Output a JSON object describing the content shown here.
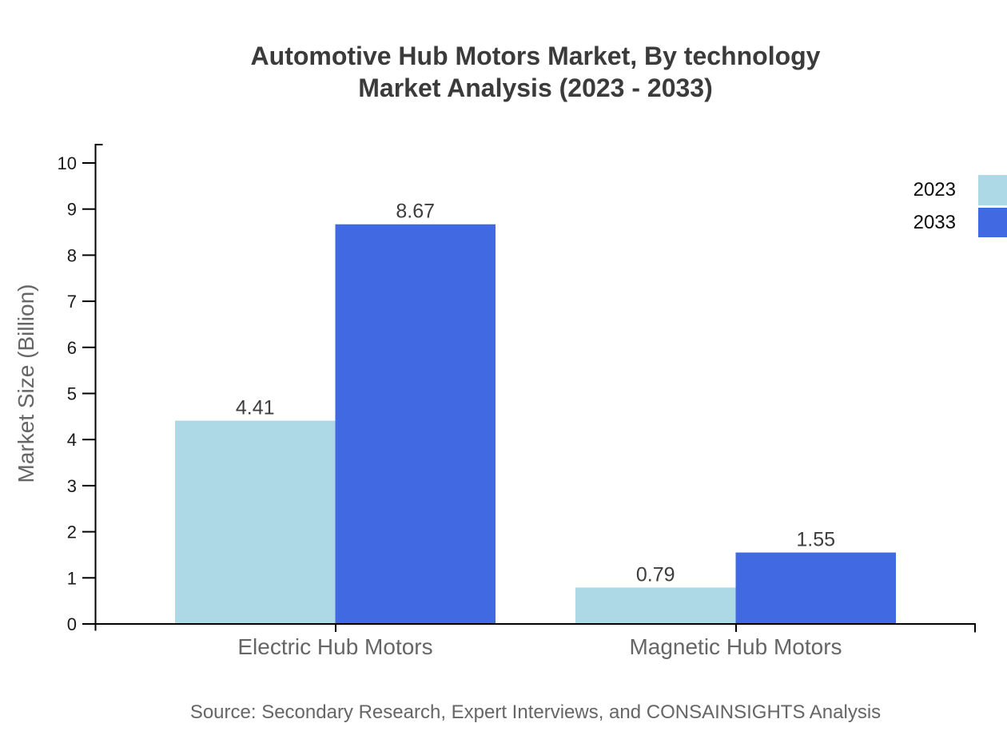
{
  "title": {
    "line1": "Automotive Hub Motors Market, By technology",
    "line2": "Market Analysis (2023 - 2033)"
  },
  "source_note": "Source: Secondary Research, Expert Interviews, and CONSAINSIGHTS Analysis",
  "chart_data": {
    "type": "bar",
    "title": "Automotive Hub Motors Market, By technology Market Analysis (2023 - 2033)",
    "categories": [
      "Electric Hub Motors",
      "Magnetic Hub Motors"
    ],
    "series": [
      {
        "name": "2023",
        "color": "#ADD8E6",
        "values": [
          4.41,
          0.79
        ]
      },
      {
        "name": "2033",
        "color": "#4169E1",
        "values": [
          8.67,
          1.55
        ]
      }
    ],
    "xlabel": "",
    "ylabel": "Market Size (Billion)",
    "ylim": [
      0,
      10
    ],
    "yticks": [
      0,
      1,
      2,
      3,
      4,
      5,
      6,
      7,
      8,
      9,
      10
    ],
    "grid": false,
    "legend_position": "top-right",
    "value_labels": true,
    "value_label_decimals": 2
  },
  "colors": {
    "axis": "#000000",
    "title_text": "#3b3b3b",
    "tick_text": "#1a1a1a",
    "value_text": "#3d3d3d",
    "category_text": "#666666",
    "muted_text": "#666666",
    "background": "#ffffff"
  }
}
